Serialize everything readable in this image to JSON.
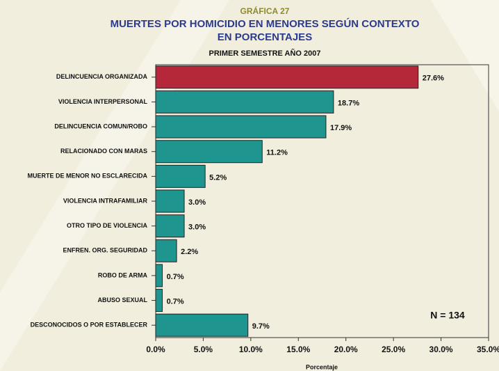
{
  "chart_data": {
    "type": "bar",
    "orientation": "horizontal",
    "supertitle": "GRÁFICA 27",
    "title": "MUERTES POR HOMICIDIO EN MENORES SEGÚN CONTEXTO",
    "title2": "EN PORCENTAJES",
    "subtitle": "PRIMER SEMESTRE AÑO 2007",
    "x_label": "Porcentaje",
    "annotation": "N = 134",
    "categories": [
      "DELINCUENCIA ORGANIZADA",
      "VIOLENCIA INTERPERSONAL",
      "DELINCUENCIA COMUN/ROBO",
      "RELACIONADO CON MARAS",
      "MUERTE DE MENOR NO ESCLARECIDA",
      "VIOLENCIA INTRAFAMILIAR",
      "OTRO TIPO DE VIOLENCIA",
      "ENFREN. ORG. SEGURIDAD",
      "ROBO DE ARMA",
      "ABUSO SEXUAL",
      "DESCONOCIDOS O POR ESTABLECER"
    ],
    "values": [
      27.6,
      18.7,
      17.9,
      11.2,
      5.2,
      3.0,
      3.0,
      2.2,
      0.7,
      0.7,
      9.7
    ],
    "value_labels": [
      "27.6%",
      "18.7%",
      "17.9%",
      "11.2%",
      "5.2%",
      "3.0%",
      "3.0%",
      "2.2%",
      "0.7%",
      "0.7%",
      "9.7%"
    ],
    "colors": [
      "#b5283a",
      "#1f958f",
      "#1f958f",
      "#1f958f",
      "#1f958f",
      "#1f958f",
      "#1f958f",
      "#1f958f",
      "#1f958f",
      "#1f958f",
      "#1f958f"
    ],
    "xlim": [
      0,
      35
    ],
    "xticks": [
      {
        "value": 0,
        "label": "0.0%"
      },
      {
        "value": 5,
        "label": "5.0%"
      },
      {
        "value": 10,
        "label": "10.0%"
      },
      {
        "value": 15,
        "label": "15.0%"
      },
      {
        "value": 20,
        "label": "20.0%"
      },
      {
        "value": 25,
        "label": "25.0%"
      },
      {
        "value": 30,
        "label": "30.0%"
      },
      {
        "value": 35,
        "label": "35.0%"
      }
    ]
  }
}
